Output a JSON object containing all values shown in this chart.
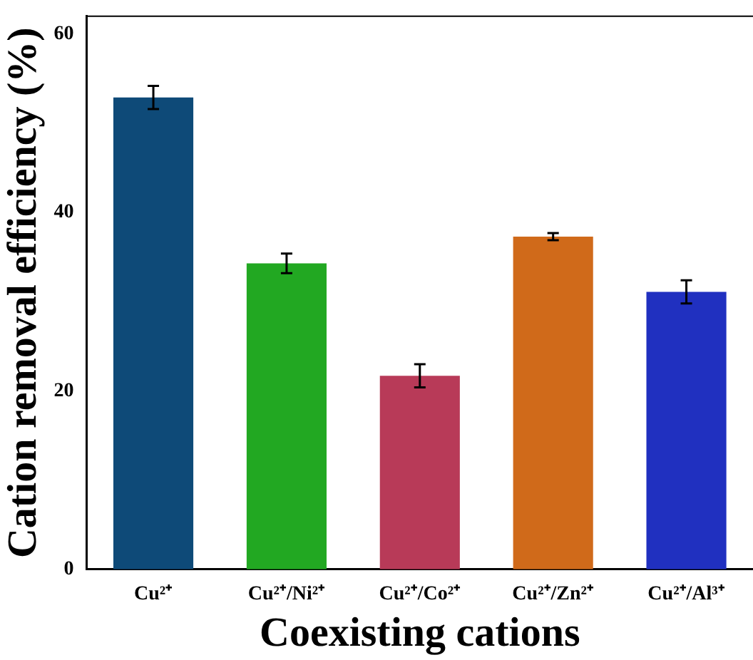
{
  "chart_data": {
    "type": "bar",
    "xlabel": "Coexisting cations",
    "ylabel": "Cation removal efficiency (%)",
    "categories": [
      "Cu²⁺",
      "Cu²⁺/Ni²⁺",
      "Cu²⁺/Co²⁺",
      "Cu²⁺/Zn²⁺",
      "Cu²⁺/Al³⁺"
    ],
    "values": [
      52.9,
      34.3,
      21.7,
      37.3,
      31.1
    ],
    "errors": [
      1.3,
      1.1,
      1.3,
      0.4,
      1.3
    ],
    "colors": [
      "#0e4a78",
      "#22a822",
      "#b83a58",
      "#d06a1a",
      "#2030c0"
    ],
    "ylim": [
      0,
      62
    ],
    "yticks": [
      0,
      20,
      40,
      60
    ],
    "grid": false,
    "legend": false
  }
}
